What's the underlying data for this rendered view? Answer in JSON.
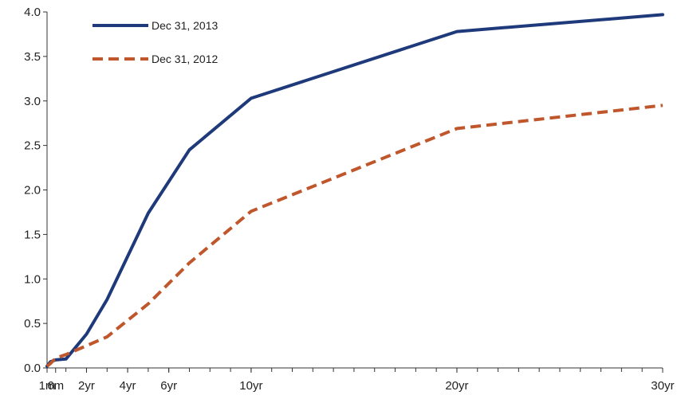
{
  "chart_data": {
    "type": "line",
    "title": "",
    "xlabel": "",
    "ylabel": "",
    "ylim": [
      0,
      4
    ],
    "yticks": [
      "0.0",
      "0.5",
      "1.0",
      "1.5",
      "2.0",
      "2.5",
      "3.0",
      "3.5",
      "4.0"
    ],
    "x_tick_labels": [
      "1m",
      "6m",
      "2yr",
      "4yr",
      "6yr",
      "10yr",
      "20yr",
      "30yr"
    ],
    "x_tick_years": [
      0.0833,
      0.5,
      2,
      4,
      6,
      10,
      20,
      30
    ],
    "legend": "top-left",
    "grid": false,
    "series": [
      {
        "name": "Dec 31, 2013",
        "color": "#1f3a7a",
        "style": "solid",
        "x": [
          0.0833,
          0.25,
          0.5,
          1,
          2,
          3,
          5,
          7,
          10,
          20,
          30
        ],
        "y": [
          0.02,
          0.07,
          0.09,
          0.1,
          0.38,
          0.77,
          1.74,
          2.45,
          3.03,
          3.78,
          3.97
        ]
      },
      {
        "name": "Dec 31, 2012",
        "color": "#c0562b",
        "style": "dashed",
        "x": [
          0.0833,
          0.25,
          0.5,
          1,
          2,
          3,
          5,
          7,
          10,
          20,
          30
        ],
        "y": [
          0.02,
          0.05,
          0.11,
          0.15,
          0.25,
          0.35,
          0.72,
          1.18,
          1.76,
          2.69,
          2.95
        ]
      }
    ]
  }
}
